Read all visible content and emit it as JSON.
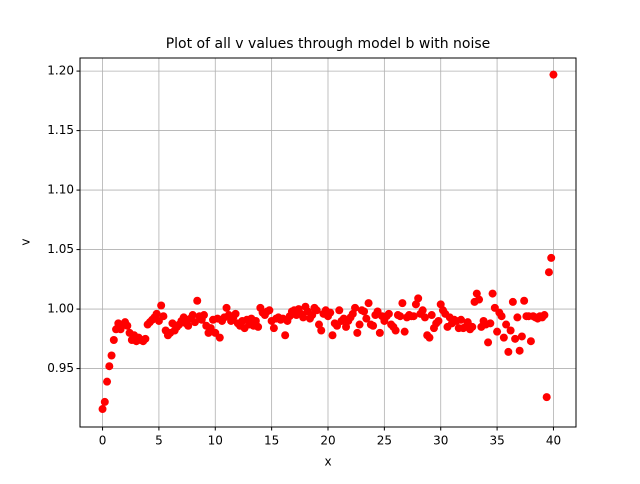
{
  "chart_data": {
    "type": "scatter",
    "title": "Plot of all v values through model b with noise",
    "x_label": "x",
    "y_label": "v",
    "color": "#ff0000",
    "grid": true,
    "xlim": [
      -2,
      42
    ],
    "ylim": [
      0.9009,
      1.211
    ],
    "xticks": [
      0,
      5,
      10,
      15,
      20,
      25,
      30,
      35,
      40
    ],
    "yticks": [
      {
        "value": 0.95,
        "label": "0.95"
      },
      {
        "value": 1.0,
        "label": "1.00"
      },
      {
        "value": 1.05,
        "label": "1.05"
      },
      {
        "value": 1.1,
        "label": "1.10"
      },
      {
        "value": 1.15,
        "label": "1.15"
      },
      {
        "value": 1.2,
        "label": "1.20"
      }
    ],
    "x": [
      0,
      0.2,
      0.4,
      0.6,
      0.8,
      1,
      1.2,
      1.4,
      1.6,
      1.8,
      2,
      2.2,
      2.4,
      2.6,
      2.8,
      3,
      3.2,
      3.4,
      3.6,
      3.8,
      4,
      4.2,
      4.4,
      4.6,
      4.8,
      5,
      5.2,
      5.4,
      5.6,
      5.8,
      6,
      6.2,
      6.4,
      6.6,
      6.8,
      7,
      7.2,
      7.4,
      7.6,
      7.8,
      8,
      8.2,
      8.4,
      8.6,
      8.8,
      9,
      9.2,
      9.4,
      9.6,
      9.8,
      10,
      10.2,
      10.4,
      10.6,
      10.8,
      11,
      11.2,
      11.4,
      11.6,
      11.8,
      12,
      12.2,
      12.4,
      12.6,
      12.8,
      13,
      13.2,
      13.4,
      13.6,
      13.8,
      14,
      14.2,
      14.4,
      14.6,
      14.8,
      15,
      15.2,
      15.4,
      15.6,
      15.8,
      16,
      16.2,
      16.4,
      16.6,
      16.8,
      17,
      17.2,
      17.4,
      17.6,
      17.8,
      18,
      18.2,
      18.4,
      18.6,
      18.8,
      19,
      19.2,
      19.4,
      19.6,
      19.8,
      20,
      20.2,
      20.4,
      20.6,
      20.8,
      21,
      21.2,
      21.4,
      21.6,
      21.8,
      22,
      22.2,
      22.4,
      22.6,
      22.8,
      23,
      23.2,
      23.4,
      23.6,
      23.8,
      24,
      24.2,
      24.4,
      24.6,
      24.8,
      25,
      25.2,
      25.4,
      25.6,
      25.8,
      26,
      26.2,
      26.4,
      26.6,
      26.8,
      27,
      27.2,
      27.4,
      27.6,
      27.8,
      28,
      28.2,
      28.4,
      28.6,
      28.8,
      29,
      29.2,
      29.4,
      29.6,
      29.8,
      30,
      30.2,
      30.4,
      30.6,
      30.8,
      31,
      31.2,
      31.4,
      31.6,
      31.8,
      32,
      32.2,
      32.4,
      32.6,
      32.8,
      33,
      33.2,
      33.4,
      33.6,
      33.8,
      34,
      34.2,
      34.4,
      34.6,
      34.8,
      35,
      35.2,
      35.4,
      35.6,
      35.8,
      36,
      36.2,
      36.4,
      36.6,
      36.8,
      37,
      37.2,
      37.4,
      37.6,
      37.8,
      38,
      38.2,
      38.4,
      38.6,
      38.8,
      39,
      39.2,
      39.4,
      39.6,
      39.8,
      40
    ],
    "values": [
      0.916,
      0.922,
      0.939,
      0.952,
      0.961,
      0.974,
      0.983,
      0.988,
      0.983,
      0.987,
      0.989,
      0.986,
      0.98,
      0.974,
      0.978,
      0.973,
      0.976,
      0.974,
      0.973,
      0.975,
      0.987,
      0.989,
      0.991,
      0.993,
      0.996,
      0.99,
      1.003,
      0.994,
      0.982,
      0.978,
      0.98,
      0.988,
      0.982,
      0.985,
      0.987,
      0.99,
      0.993,
      0.988,
      0.986,
      0.992,
      0.995,
      0.989,
      1.007,
      0.994,
      0.991,
      0.995,
      0.986,
      0.98,
      0.984,
      0.991,
      0.98,
      0.992,
      0.976,
      0.99,
      0.993,
      1.001,
      0.995,
      0.99,
      0.993,
      0.996,
      0.988,
      0.986,
      0.99,
      0.984,
      0.991,
      0.987,
      0.992,
      0.986,
      0.99,
      0.985,
      1.001,
      0.997,
      0.995,
      0.998,
      0.999,
      0.99,
      0.984,
      0.992,
      0.993,
      0.991,
      0.992,
      0.978,
      0.99,
      0.994,
      0.998,
      0.999,
      0.995,
      1.0,
      0.996,
      0.993,
      1.002,
      0.998,
      0.992,
      0.995,
      1.001,
      0.999,
      0.987,
      0.982,
      0.996,
      0.999,
      0.994,
      0.997,
      0.978,
      0.988,
      0.986,
      0.999,
      0.99,
      0.992,
      0.985,
      0.99,
      0.993,
      0.996,
      1.001,
      0.98,
      0.987,
      0.999,
      0.998,
      0.992,
      1.005,
      0.987,
      0.986,
      0.995,
      0.998,
      0.98,
      0.994,
      0.99,
      0.994,
      0.996,
      0.987,
      0.985,
      0.982,
      0.995,
      0.994,
      1.005,
      0.981,
      0.993,
      0.995,
      0.994,
      0.994,
      1.004,
      1.009,
      0.996,
      0.999,
      0.993,
      0.978,
      0.976,
      0.995,
      0.984,
      0.988,
      0.99,
      1.004,
      0.999,
      0.996,
      0.985,
      0.993,
      0.988,
      0.991,
      0.99,
      0.984,
      0.991,
      0.984,
      0.985,
      0.989,
      0.983,
      0.985,
      1.006,
      1.013,
      1.008,
      0.985,
      0.99,
      0.987,
      0.972,
      0.988,
      1.013,
      1.001,
      0.981,
      0.997,
      0.994,
      0.976,
      0.987,
      0.964,
      0.982,
      1.006,
      0.975,
      0.993,
      0.965,
      0.977,
      1.007,
      0.994,
      0.994,
      0.973,
      0.994,
      0.993,
      0.992,
      0.994,
      0.993,
      0.995,
      0.926,
      1.031,
      1.043,
      1.197
    ]
  }
}
